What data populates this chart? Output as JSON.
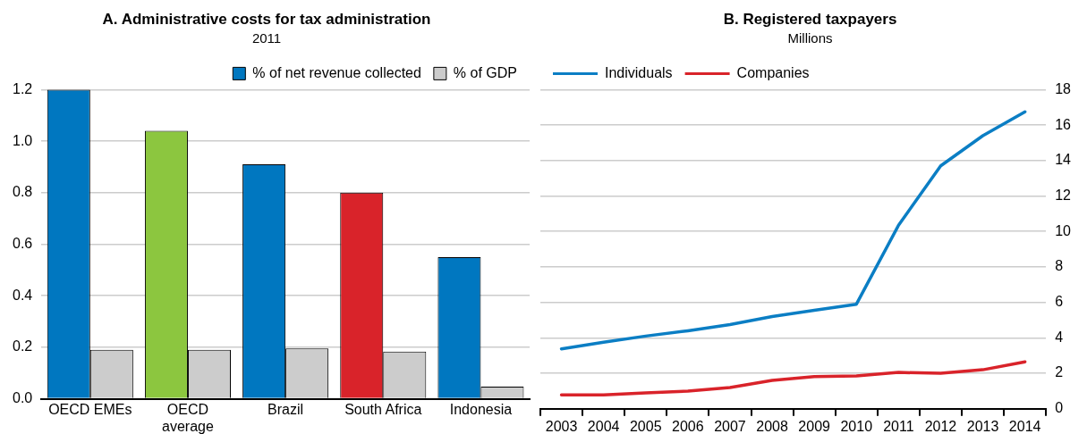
{
  "chart_data": [
    {
      "type": "bar",
      "title": "A. Administrative costs for tax administration",
      "subtitle": "2011",
      "categories": [
        "OECD EMEs",
        "OECD average",
        "Brazil",
        "South Africa",
        "Indonesia"
      ],
      "series": [
        {
          "name": "% of net revenue collected",
          "color": "#0077c0",
          "colors": [
            "#0077c0",
            "#8cc63f",
            "#0077c0",
            "#d9232a",
            "#0077c0"
          ],
          "values": [
            1.2,
            1.04,
            0.91,
            0.8,
            0.55
          ]
        },
        {
          "name": "% of GDP",
          "color": "#cccccc",
          "values": [
            0.19,
            0.19,
            0.195,
            0.183,
            0.047
          ]
        }
      ],
      "ylim": [
        0,
        1.2
      ],
      "yticks": [
        {
          "value": 0,
          "label": "0.0"
        },
        0.2,
        0.4,
        0.6,
        0.8,
        {
          "value": 1,
          "label": "1.0"
        },
        1.2
      ],
      "grid": "y",
      "legend": "top right"
    },
    {
      "type": "line",
      "title": "B. Registered taxpayers",
      "subtitle": "Millions",
      "categories": [
        "2003",
        "2004",
        "2005",
        "2006",
        "2007",
        "2008",
        "2009",
        "2010",
        "2011",
        "2012",
        "2013",
        "2014"
      ],
      "series": [
        {
          "name": "Individuals",
          "color": "#0b7ec4",
          "values": [
            3.38,
            3.75,
            4.1,
            4.4,
            4.75,
            5.2,
            5.55,
            5.9,
            10.35,
            13.7,
            15.4,
            16.75
          ]
        },
        {
          "name": "Companies",
          "color": "#d9232a",
          "values": [
            0.78,
            0.78,
            0.9,
            1.0,
            1.2,
            1.6,
            1.82,
            1.85,
            2.05,
            2.0,
            2.2,
            2.65
          ]
        }
      ],
      "ylim": [
        0,
        18
      ],
      "yticks": [
        0,
        2,
        4,
        6,
        8,
        10,
        12,
        14,
        16,
        18
      ],
      "grid": "y",
      "legend": "top left",
      "marker": "none",
      "line_style": "solid"
    }
  ]
}
